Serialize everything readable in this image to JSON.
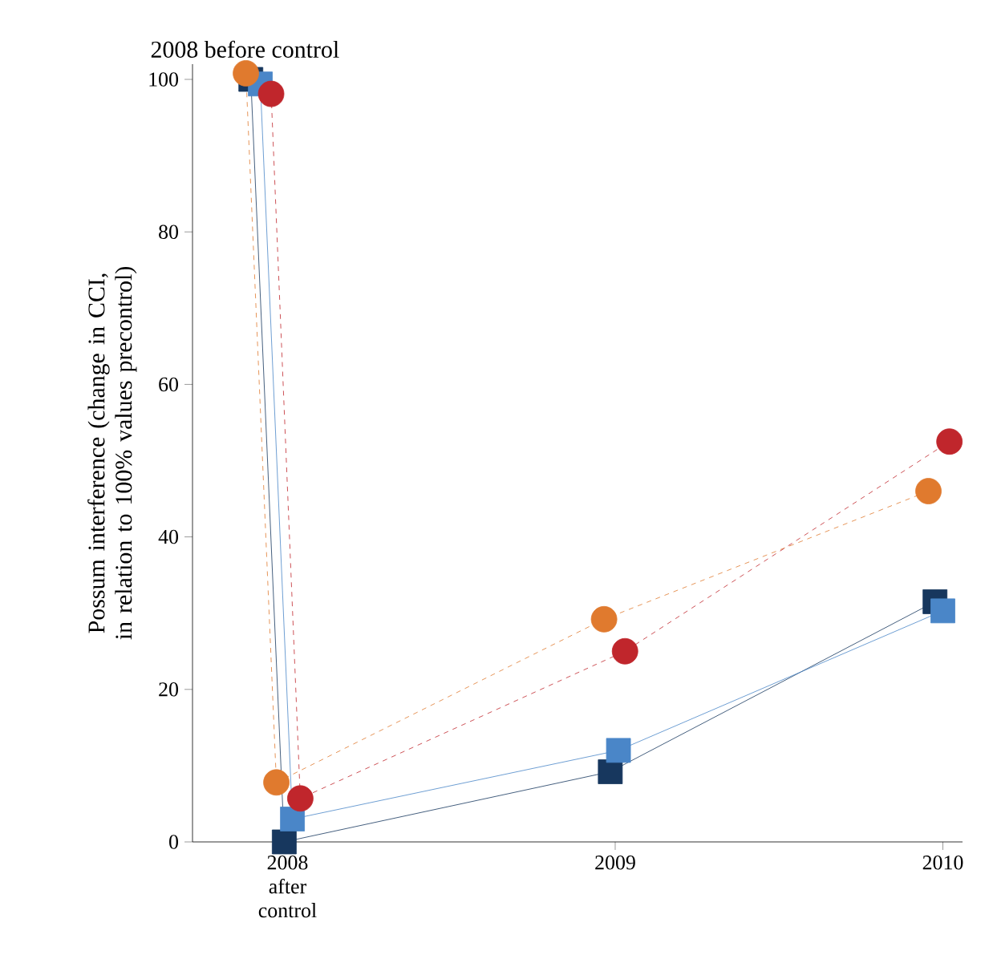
{
  "chart_data": {
    "type": "line",
    "ylabel": "Possum interference (change in CCI, in relation to 100% values precontrol)",
    "xlim": [
      2007.71,
      2010.06
    ],
    "ylim": [
      0,
      102
    ],
    "xticks": [
      {
        "value": 2008,
        "label": "2008 after control"
      },
      2009,
      2010
    ],
    "yticks": [
      0,
      20,
      40,
      60,
      80,
      100
    ],
    "annotations": [
      {
        "text": "2008 before control",
        "x": 2007.87,
        "y": 100
      }
    ],
    "series": [
      {
        "color": "#17375e",
        "marker": "square",
        "line_style": "solid",
        "x": [
          2007.888,
          2007.99,
          2008.985,
          2009.976
        ],
        "values": [
          100,
          0,
          9.2,
          31.5
        ]
      },
      {
        "color": "#4a86c8",
        "marker": "square",
        "line_style": "solid",
        "x": [
          2007.917,
          2008.015,
          2009.01,
          2010.0
        ],
        "values": [
          99.4,
          3,
          12,
          30.3
        ]
      },
      {
        "color": "#e07a2e",
        "marker": "circle",
        "line_style": "dashed",
        "x": [
          2007.873,
          2007.966,
          2008.966,
          2009.956
        ],
        "values": [
          100.8,
          7.8,
          29.2,
          46
        ]
      },
      {
        "color": "#c0262c",
        "marker": "circle",
        "line_style": "dashed",
        "x": [
          2007.95,
          2008.039,
          2009.03,
          2010.02
        ],
        "values": [
          98.1,
          5.7,
          25,
          52.5
        ]
      }
    ]
  }
}
